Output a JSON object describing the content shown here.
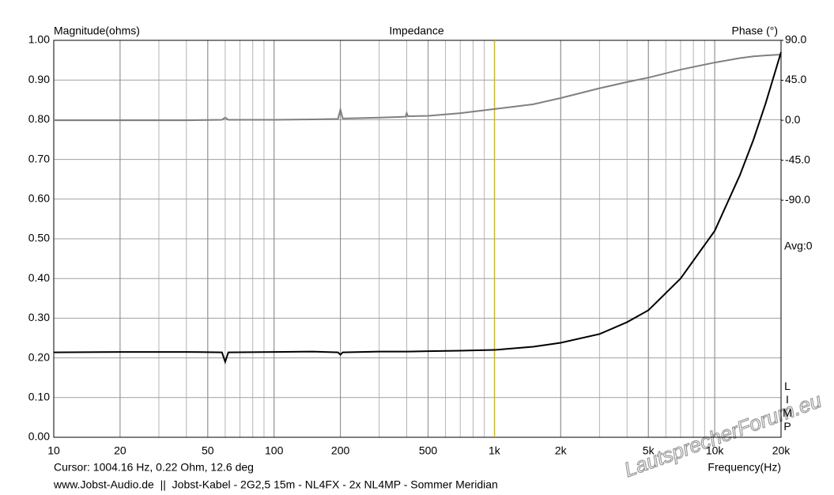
{
  "chart_data": {
    "type": "line",
    "title": "Impedance",
    "y_label": "Magnitude(ohms)",
    "y2_label": "Phase (°)",
    "x_label": "Frequency(Hz)",
    "annotations": {
      "avg": "Avg:0",
      "brand": "LIMP",
      "cursor": "Cursor: 1004.16 Hz, 0.22 Ohm, 12.6 deg",
      "footer": "www.Jobst-Audio.de  ||  Jobst-Kabel - 2G2,5 15m - NL4FX - 2x NL4MP - Sommer Meridian",
      "watermark": "LautsprecherForum.eu"
    },
    "cursor_x": 1004.16,
    "cursor_color": "#e8d800",
    "log_x": true,
    "grid": true,
    "xlim": [
      10,
      20000
    ],
    "xticks": [
      10,
      20,
      50,
      100,
      200,
      500,
      {
        "value": 1000,
        "label": "1k"
      },
      {
        "value": 2000,
        "label": "2k"
      },
      {
        "value": 5000,
        "label": "5k"
      },
      {
        "value": 10000,
        "label": "10k"
      },
      {
        "value": 20000,
        "label": "20k"
      }
    ],
    "ylim": [
      0,
      1
    ],
    "yticks": [
      {
        "value": 0,
        "label": "0.00"
      },
      {
        "value": 0.1,
        "label": "0.10"
      },
      {
        "value": 0.2,
        "label": "0.20"
      },
      {
        "value": 0.3,
        "label": "0.30"
      },
      {
        "value": 0.4,
        "label": "0.40"
      },
      {
        "value": 0.5,
        "label": "0.50"
      },
      {
        "value": 0.6,
        "label": "0.60"
      },
      {
        "value": 0.7,
        "label": "0.70"
      },
      {
        "value": 0.8,
        "label": "0.80"
      },
      {
        "value": 0.9,
        "label": "0.90"
      },
      {
        "value": 1,
        "label": "1.00"
      }
    ],
    "y2lim": [
      -357,
      90
    ],
    "y2ticks": [
      {
        "value": 90,
        "label": "90.0"
      },
      {
        "value": 45,
        "label": "45.0"
      },
      {
        "value": 0,
        "label": "0.0"
      },
      {
        "value": -45,
        "label": "-45.0"
      },
      {
        "value": -90,
        "label": "-90.0"
      }
    ],
    "x": [
      10,
      20,
      40,
      58,
      60,
      62,
      100,
      150,
      195,
      200,
      205,
      300,
      395,
      400,
      405,
      500,
      700,
      1000,
      1500,
      2000,
      3000,
      4000,
      5000,
      7000,
      10000,
      13000,
      15000,
      17000,
      20000
    ],
    "series": [
      {
        "name": "Magnitude",
        "color": "#000000",
        "axis": "y",
        "values": [
          0.214,
          0.215,
          0.215,
          0.214,
          0.19,
          0.214,
          0.215,
          0.216,
          0.214,
          0.208,
          0.214,
          0.216,
          0.216,
          0.216,
          0.216,
          0.217,
          0.218,
          0.22,
          0.228,
          0.238,
          0.26,
          0.29,
          0.32,
          0.4,
          0.52,
          0.66,
          0.75,
          0.84,
          0.97
        ]
      },
      {
        "name": "Phase",
        "color": "#808080",
        "axis": "y2",
        "values": [
          0,
          0,
          0,
          0.5,
          3,
          0.5,
          0.5,
          1,
          1.5,
          12,
          2,
          3,
          4,
          8,
          4.5,
          5,
          8,
          12.6,
          18,
          25,
          36,
          43,
          48,
          57,
          65,
          70,
          72,
          73,
          74
        ]
      }
    ]
  }
}
